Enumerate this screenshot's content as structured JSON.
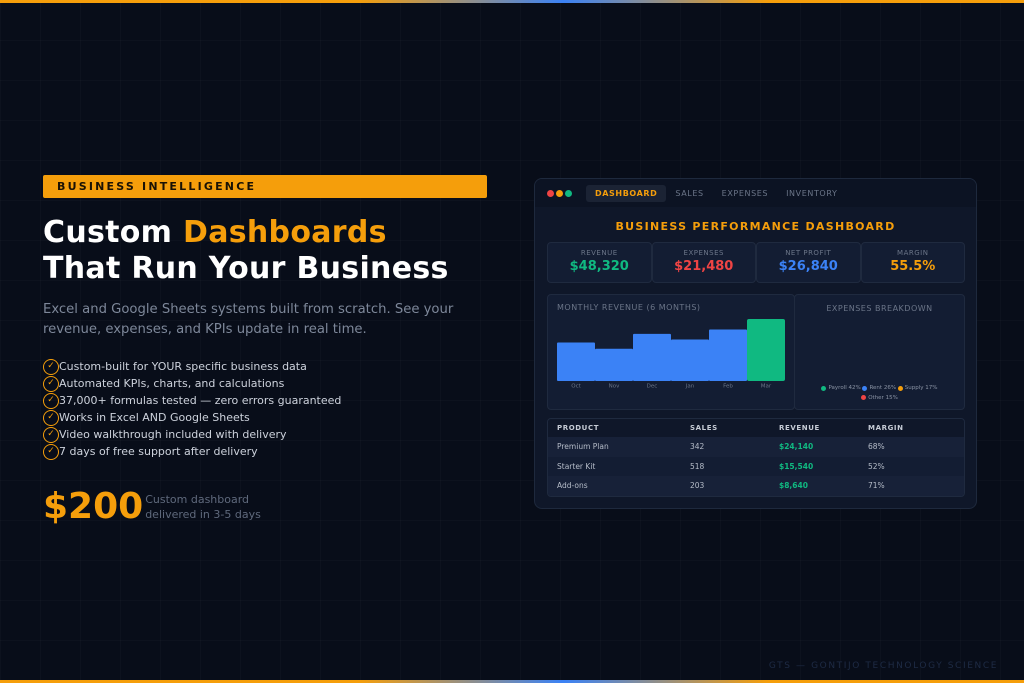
{
  "badge": "BUSINESS INTELLIGENCE",
  "headline": {
    "part1": "Custom ",
    "accent": "Dashboards",
    "line2": "That Run Your Business"
  },
  "lead": "Excel and Google Sheets systems built from scratch. See your revenue, expenses, and KPIs update in real time.",
  "features": [
    "Custom-built for YOUR specific business data",
    "Automated KPIs, charts, and calculations",
    "37,000+ formulas tested — zero errors guaranteed",
    "Works in Excel AND Google Sheets",
    "Video walkthrough included with delivery",
    "7 days of free support after delivery"
  ],
  "check_icon": "✓",
  "price": "$200",
  "price_note": {
    "line1": "Custom dashboard",
    "line2": "delivered in 3-5 days"
  },
  "panel": {
    "window_dots": [
      "#ef4444",
      "#f59e0b",
      "#10b981"
    ],
    "tabs": [
      "DASHBOARD",
      "SALES",
      "EXPENSES",
      "INVENTORY"
    ],
    "active_tab": "DASHBOARD",
    "title": "BUSINESS PERFORMANCE DASHBOARD",
    "kpis": [
      {
        "label": "REVENUE",
        "value": "$48,320",
        "color": "#10b981"
      },
      {
        "label": "EXPENSES",
        "value": "$21,480",
        "color": "#ef4444"
      },
      {
        "label": "NET PROFIT",
        "value": "$26,840",
        "color": "#3b82f6"
      },
      {
        "label": "MARGIN",
        "value": "55.5%",
        "color": "#f59e0b"
      }
    ],
    "revenue_chart_title": "MONTHLY REVENUE (6 MONTHS)",
    "expenses_title": "EXPENSES BREAKDOWN",
    "expenses_legend": [
      {
        "label": "Payroll 42%",
        "color": "#10b981"
      },
      {
        "label": "Rent 26%",
        "color": "#3b82f6"
      },
      {
        "label": "Supply 17%",
        "color": "#f59e0b"
      },
      {
        "label": "Other 15%",
        "color": "#ef4444"
      }
    ],
    "table": {
      "headers": [
        "PRODUCT",
        "SALES",
        "REVENUE",
        "MARGIN"
      ],
      "rows": [
        [
          "Premium Plan",
          "342",
          "$24,140",
          "68%"
        ],
        [
          "Starter Kit",
          "518",
          "$15,540",
          "52%"
        ],
        [
          "Add-ons",
          "203",
          "$8,640",
          "71%"
        ]
      ]
    }
  },
  "footer": "GTS — GONTIJO TECHNOLOGY SCIENCE",
  "chart_data": {
    "type": "bar",
    "title": "MONTHLY REVENUE (6 MONTHS)",
    "categories": [
      "Oct",
      "Nov",
      "Dec",
      "Jan",
      "Feb",
      "Mar"
    ],
    "values": [
      62,
      52,
      76,
      67,
      83,
      100
    ],
    "ylim": [
      0,
      100
    ],
    "colors": [
      "#3b82f6",
      "#3b82f6",
      "#3b82f6",
      "#3b82f6",
      "#3b82f6",
      "#10b981"
    ],
    "grid": false
  }
}
